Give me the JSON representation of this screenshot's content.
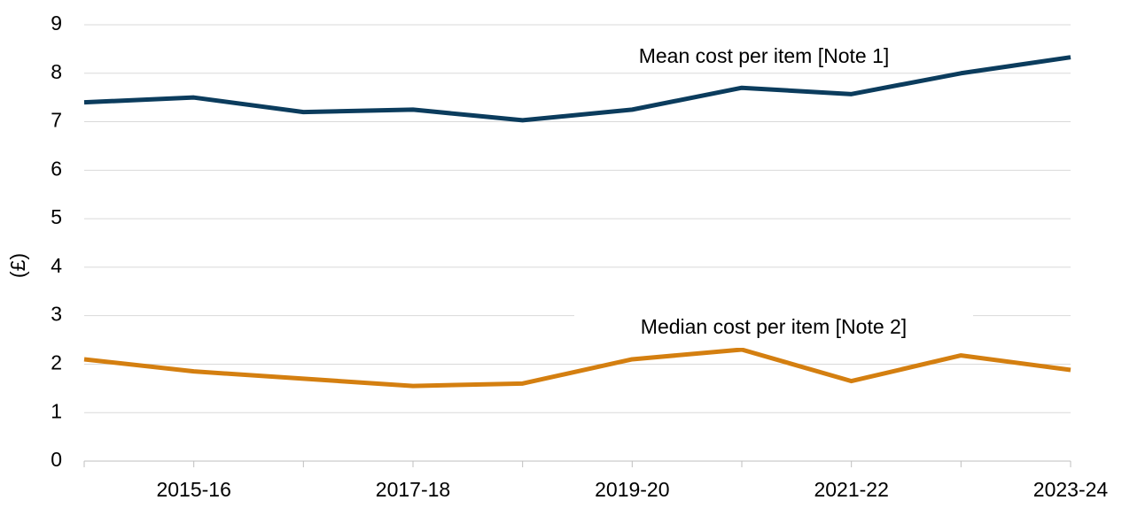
{
  "chart_data": {
    "type": "line",
    "ylabel": "(£)",
    "categories": [
      null,
      "2015-16",
      null,
      "2017-18",
      null,
      "2019-20",
      null,
      "2021-22",
      null,
      "2023-24"
    ],
    "series": [
      {
        "name": "Mean cost per item [Note 1]",
        "color": "#0b3c5d",
        "values": [
          7.4,
          7.5,
          7.2,
          7.25,
          7.03,
          7.25,
          7.7,
          7.57,
          8.0,
          8.33
        ]
      },
      {
        "name": "Median cost per item [Note 2]",
        "color": "#d47f10",
        "values": [
          2.1,
          1.85,
          1.7,
          1.55,
          1.6,
          2.1,
          2.3,
          1.65,
          2.18,
          1.88
        ]
      }
    ],
    "ylim": [
      0,
      9
    ],
    "yticks": [
      0,
      1,
      2,
      3,
      4,
      5,
      6,
      7,
      8,
      9
    ],
    "grid": true
  }
}
